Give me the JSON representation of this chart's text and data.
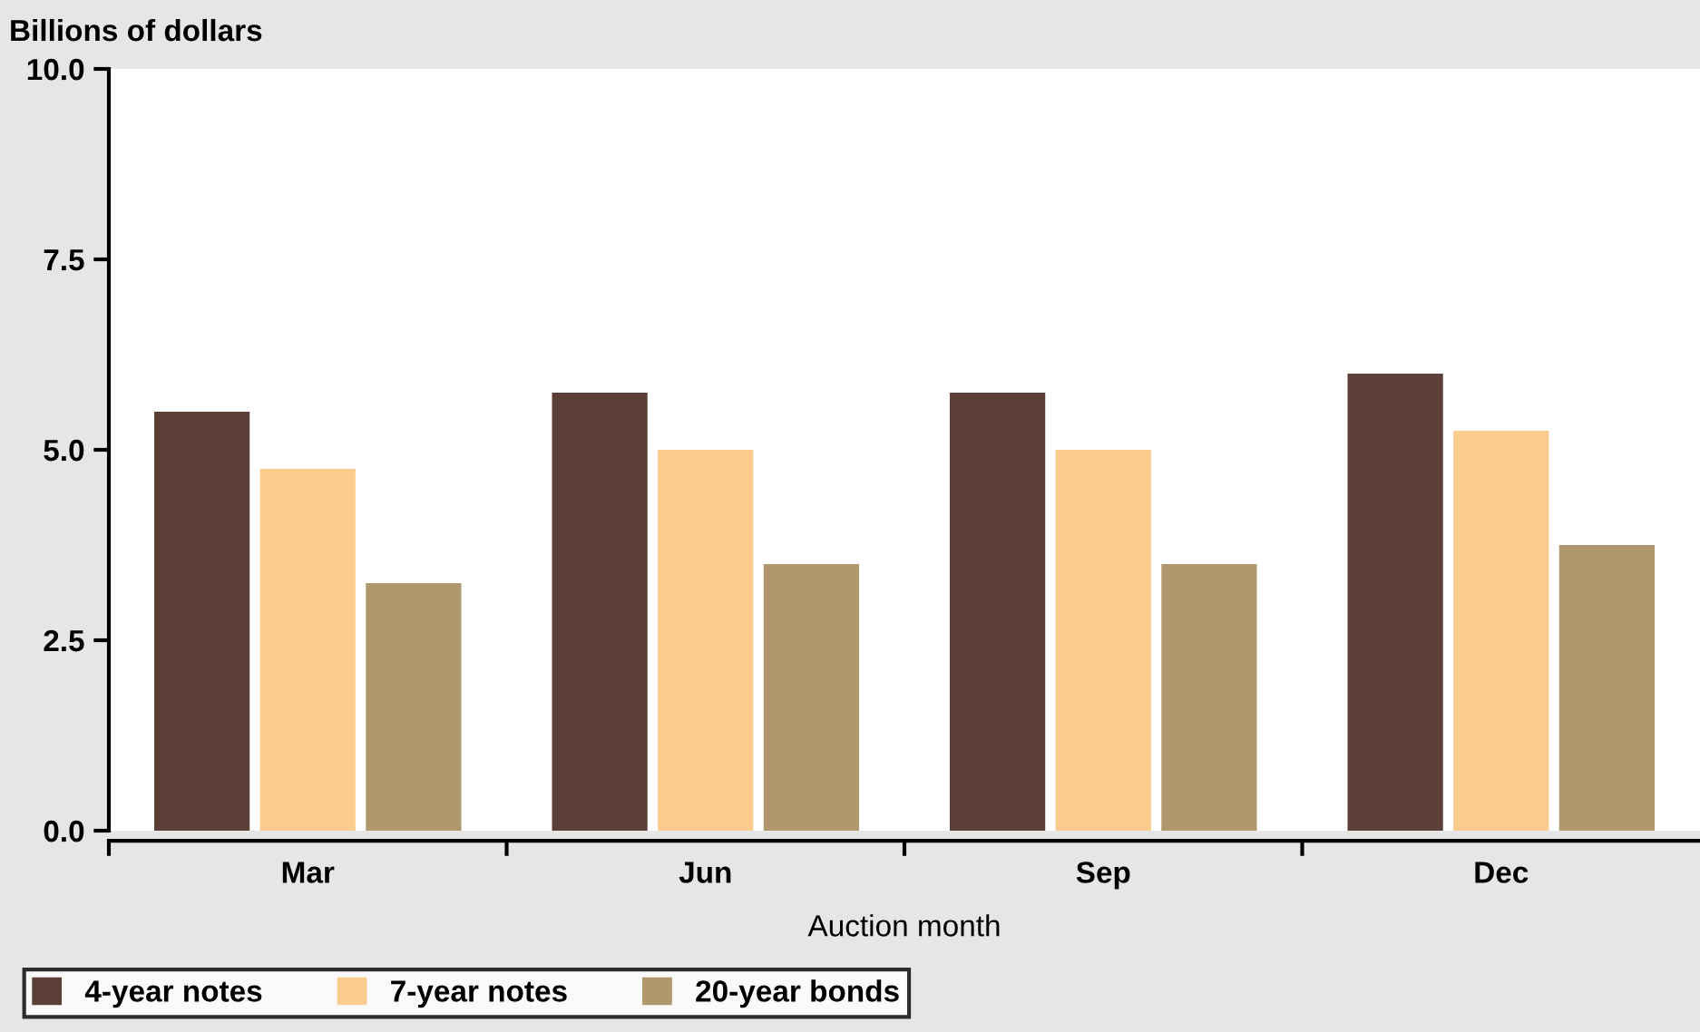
{
  "chart_data": {
    "type": "bar",
    "ylabel": "Billions of dollars",
    "xlabel": "Auction month",
    "categories": [
      "Mar",
      "Jun",
      "Sep",
      "Dec"
    ],
    "series": [
      {
        "name": "4-year notes",
        "color": "#5c4037",
        "values": [
          5.5,
          5.75,
          5.75,
          6.0
        ]
      },
      {
        "name": "7-year notes",
        "color": "#fccb8e",
        "values": [
          4.75,
          5.0,
          5.0,
          5.25
        ]
      },
      {
        "name": "20-year bonds",
        "color": "#b0976e",
        "values": [
          3.25,
          3.5,
          3.5,
          3.75
        ]
      }
    ],
    "ylim": [
      0,
      10
    ],
    "yticks": [
      {
        "value": 0,
        "label": "0.0"
      },
      {
        "value": 2.5,
        "label": "2.5"
      },
      {
        "value": 5,
        "label": "5.0"
      },
      {
        "value": 7.5,
        "label": "7.5"
      },
      {
        "value": 10,
        "label": "10.0"
      }
    ],
    "grid": false,
    "legend": "bottom left"
  }
}
